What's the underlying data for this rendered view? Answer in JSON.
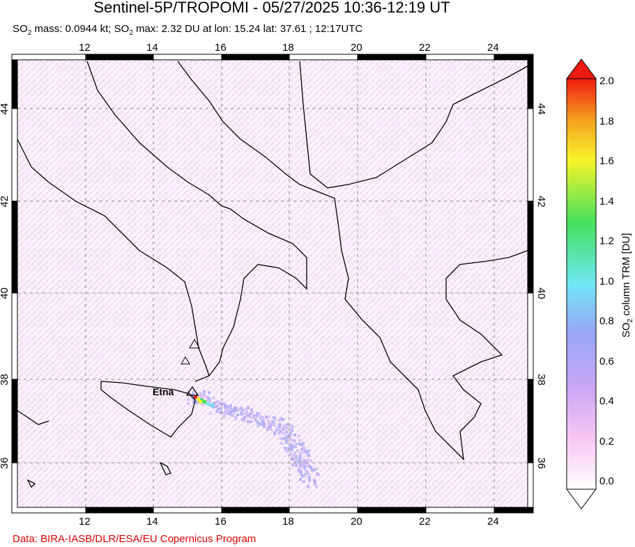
{
  "title": "Sentinel-5P/TROPOMI - 05/27/2025 10:36-12:19 UT",
  "subtitle": {
    "so2_prefix": "SO",
    "mass_text": " mass: 0.0944 kt; SO",
    "max_text": " max: 2.32 DU at lon: 15.24 lat: 37.61 ; 12:17UTC",
    "sub2": "2"
  },
  "map": {
    "lon_ticks": [
      "12",
      "14",
      "16",
      "18",
      "20",
      "22",
      "24"
    ],
    "lat_ticks": [
      "44",
      "42",
      "40",
      "38",
      "36"
    ],
    "volcano_label": "Etna",
    "background_color": "#f9eef9"
  },
  "colorbar": {
    "labels": [
      "2.0",
      "1.8",
      "1.6",
      "1.4",
      "1.2",
      "1.0",
      "0.8",
      "0.6",
      "0.4",
      "0.2",
      "0.0"
    ],
    "title_prefix": "SO",
    "title_sub": "2",
    "title_suffix": " column TRM [DU]",
    "range": [
      0.0,
      2.0
    ],
    "colors": [
      "#ffffff",
      "#f9c8f2",
      "#c7a6f5",
      "#9aa6f7",
      "#6fe6f6",
      "#45e05a",
      "#f6f52a",
      "#f5a020",
      "#f01a10"
    ]
  },
  "footer": "Data: BIRA-IASB/DLR/ESA/EU Copernicus Program"
}
